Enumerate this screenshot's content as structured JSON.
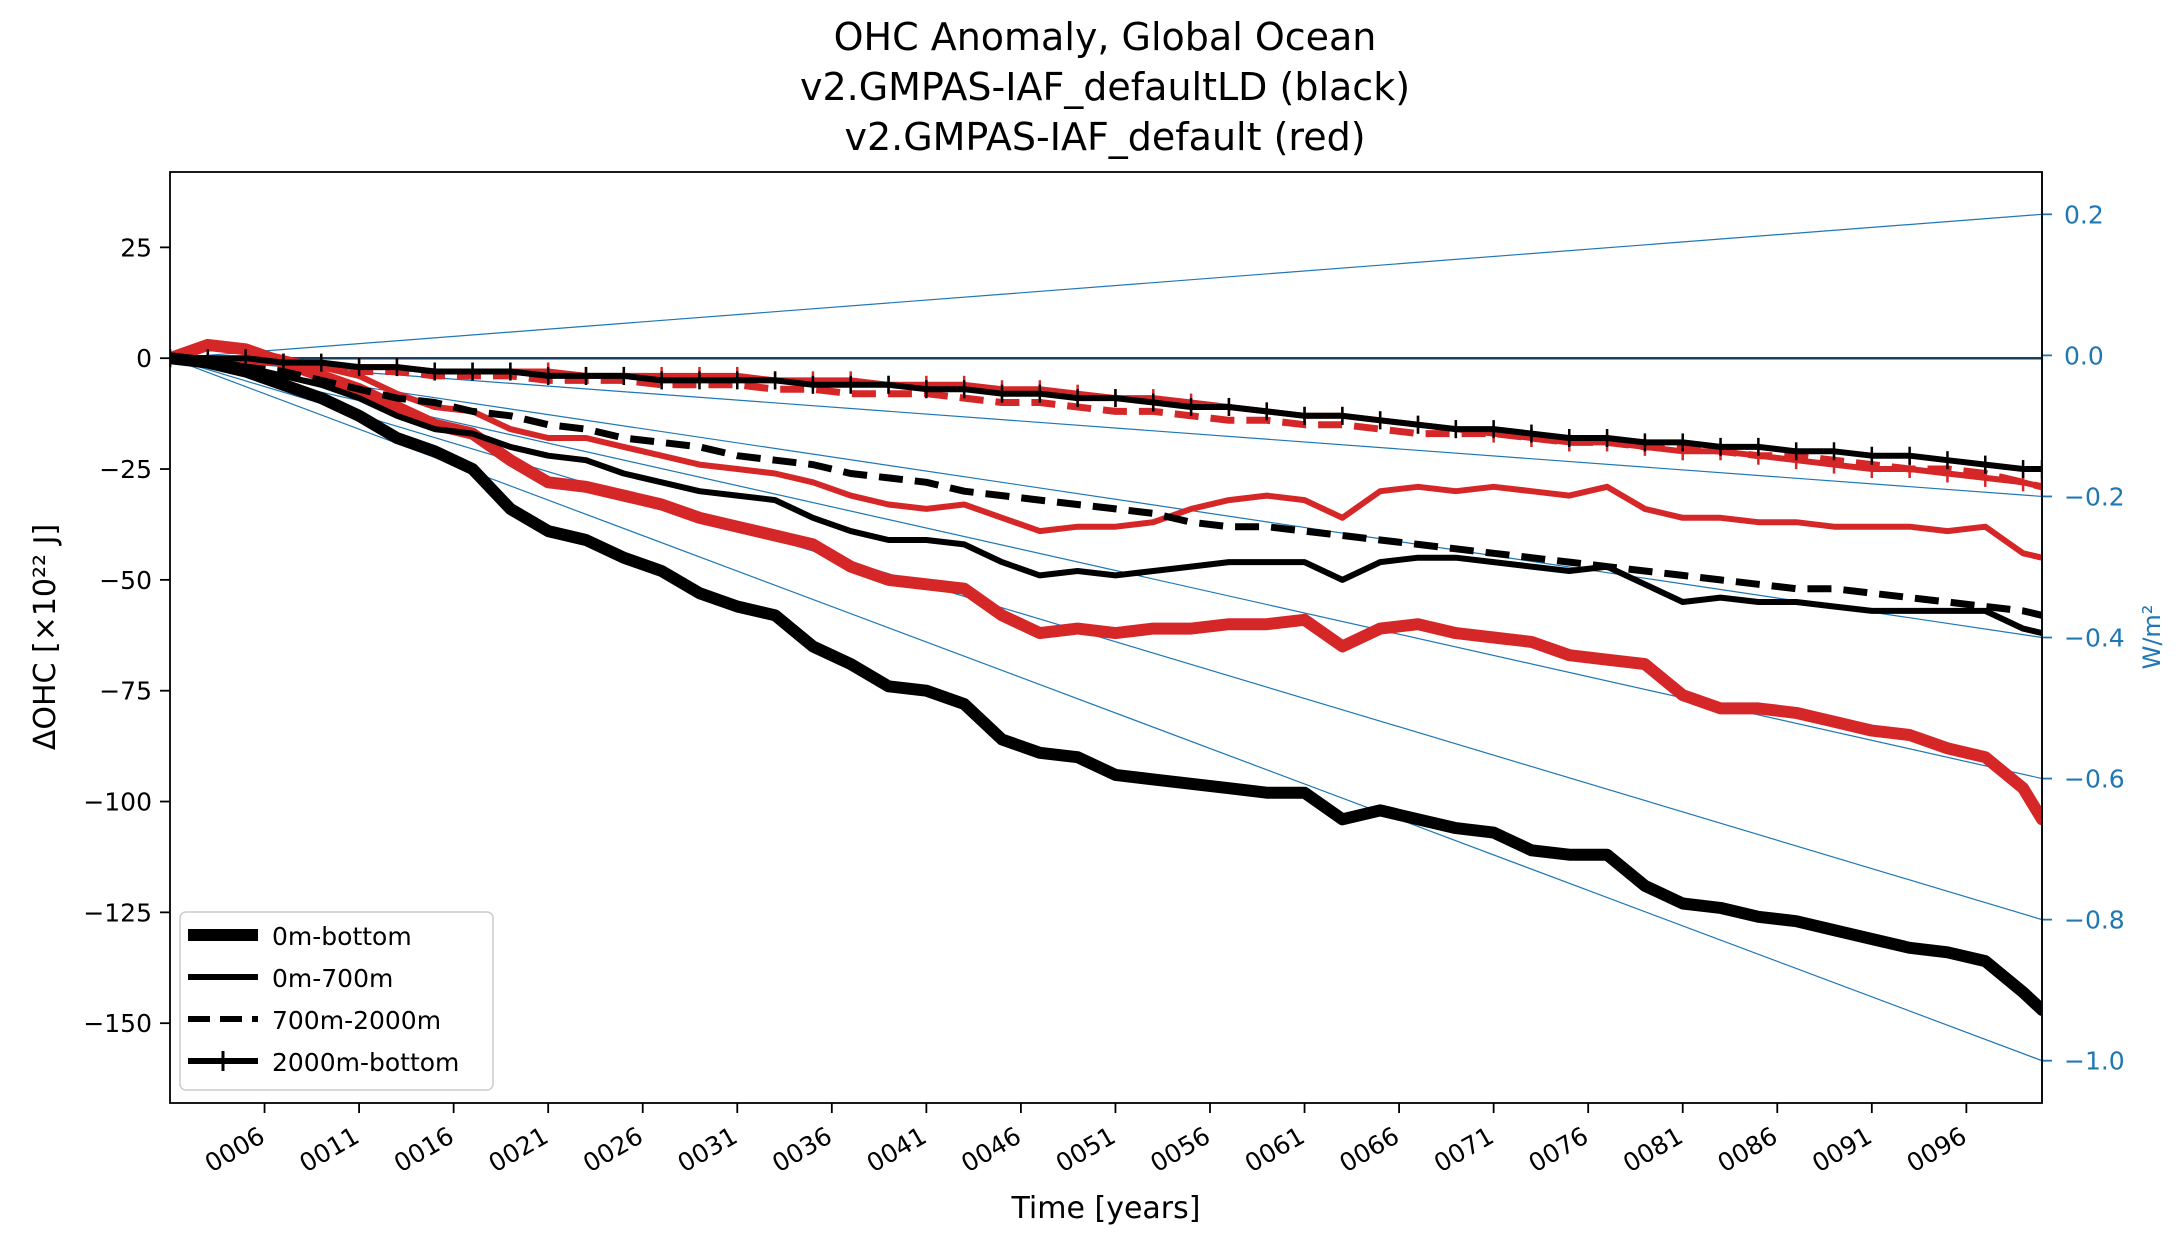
{
  "chart_data": {
    "type": "line",
    "title": [
      "OHC Anomaly, Global Ocean",
      "v2.GMPAS-IAF_defaultLD (black)",
      "v2.GMPAS-IAF_default (red)"
    ],
    "xlabel": "Time [years]",
    "ylabel": "ΔOHC [×10²² J]",
    "y2label": "W/m²",
    "xlim": [
      1,
      100
    ],
    "ylim": [
      -168,
      42
    ],
    "y2lim": [
      -1.06,
      0.26
    ],
    "x_ticks": [
      6,
      11,
      16,
      21,
      26,
      31,
      36,
      41,
      46,
      51,
      56,
      61,
      66,
      71,
      76,
      81,
      86,
      91,
      96
    ],
    "x_tick_labels": [
      "0006",
      "0011",
      "0016",
      "0021",
      "0026",
      "0031",
      "0036",
      "0041",
      "0046",
      "0051",
      "0056",
      "0061",
      "0066",
      "0071",
      "0076",
      "0081",
      "0086",
      "0091",
      "0096"
    ],
    "y_ticks": [
      25,
      0,
      -25,
      -50,
      -75,
      -100,
      -125,
      -150
    ],
    "y_tick_labels": [
      "25",
      "0",
      "−25",
      "−50",
      "−75",
      "−100",
      "−125",
      "−150"
    ],
    "y2_ticks": [
      0.2,
      0.0,
      -0.2,
      -0.4,
      -0.6,
      -0.8,
      -1.0
    ],
    "y2_tick_labels": [
      "0.2",
      "0.0",
      "−0.2",
      "−0.4",
      "−0.6",
      "−0.8",
      "−1.0"
    ],
    "reference_lines_wm2": [
      0.2,
      -0.2,
      -0.4,
      -0.6,
      -0.8,
      -1.0
    ],
    "legend": {
      "position": "lower-left",
      "entries": [
        {
          "label": "0m-bottom",
          "style": "thick-solid"
        },
        {
          "label": "0m-700m",
          "style": "solid"
        },
        {
          "label": "700m-2000m",
          "style": "dashed"
        },
        {
          "label": "2000m-bottom",
          "style": "plus-marker"
        }
      ]
    },
    "colors": {
      "black": "#000000",
      "red": "#d62728",
      "axis2": "#1f77b4",
      "zero_line": "#1f3f5f"
    },
    "x": [
      1,
      3,
      5,
      7,
      9,
      11,
      13,
      15,
      17,
      19,
      21,
      23,
      25,
      27,
      29,
      31,
      33,
      35,
      37,
      39,
      41,
      43,
      45,
      47,
      49,
      51,
      53,
      55,
      57,
      59,
      61,
      63,
      65,
      67,
      69,
      71,
      73,
      75,
      77,
      79,
      81,
      83,
      85,
      87,
      89,
      91,
      93,
      95,
      97,
      99,
      100
    ],
    "series": [
      {
        "run": "v2.GMPAS-IAF_defaultLD",
        "depth": "0m-bottom",
        "color": "black",
        "style": "thick-solid",
        "values": [
          0,
          -1,
          -3,
          -6,
          -9,
          -13,
          -18,
          -21,
          -25,
          -34,
          -39,
          -41,
          -45,
          -48,
          -53,
          -56,
          -58,
          -65,
          -69,
          -74,
          -75,
          -78,
          -86,
          -89,
          -90,
          -94,
          -95,
          -96,
          -97,
          -98,
          -98,
          -104,
          -102,
          -104,
          -106,
          -107,
          -111,
          -112,
          -112,
          -119,
          -123,
          -124,
          -126,
          -127,
          -129,
          -131,
          -133,
          -134,
          -136,
          -143,
          -147
        ]
      },
      {
        "run": "v2.GMPAS-IAF_defaultLD",
        "depth": "0m-700m",
        "color": "black",
        "style": "solid",
        "values": [
          0,
          0,
          -2,
          -4,
          -6,
          -9,
          -13,
          -16,
          -17,
          -20,
          -22,
          -23,
          -26,
          -28,
          -30,
          -31,
          -32,
          -36,
          -39,
          -41,
          -41,
          -42,
          -46,
          -49,
          -48,
          -49,
          -48,
          -47,
          -46,
          -46,
          -46,
          -50,
          -46,
          -45,
          -45,
          -46,
          -47,
          -48,
          -47,
          -51,
          -55,
          -54,
          -55,
          -55,
          -56,
          -57,
          -57,
          -57,
          -57,
          -61,
          -62
        ]
      },
      {
        "run": "v2.GMPAS-IAF_defaultLD",
        "depth": "700m-2000m",
        "color": "black",
        "style": "dashed",
        "values": [
          0,
          -1,
          -2,
          -3,
          -5,
          -7,
          -9,
          -10,
          -12,
          -13,
          -15,
          -16,
          -18,
          -19,
          -20,
          -22,
          -23,
          -24,
          -26,
          -27,
          -28,
          -30,
          -31,
          -32,
          -33,
          -34,
          -35,
          -37,
          -38,
          -38,
          -39,
          -40,
          -41,
          -42,
          -43,
          -44,
          -45,
          -46,
          -47,
          -48,
          -49,
          -50,
          -51,
          -52,
          -52,
          -53,
          -54,
          -55,
          -56,
          -57,
          -58
        ]
      },
      {
        "run": "v2.GMPAS-IAF_defaultLD",
        "depth": "2000m-bottom",
        "color": "black",
        "style": "plus-marker",
        "values": [
          0,
          0,
          0,
          -1,
          -1,
          -2,
          -2,
          -3,
          -3,
          -3,
          -4,
          -4,
          -4,
          -5,
          -5,
          -5,
          -5,
          -6,
          -6,
          -6,
          -7,
          -7,
          -8,
          -8,
          -9,
          -9,
          -10,
          -11,
          -11,
          -12,
          -13,
          -13,
          -14,
          -15,
          -16,
          -16,
          -17,
          -18,
          -18,
          -19,
          -19,
          -20,
          -20,
          -21,
          -21,
          -22,
          -22,
          -23,
          -24,
          -25,
          -25
        ]
      },
      {
        "run": "v2.GMPAS-IAF_default",
        "depth": "0m-bottom",
        "color": "red",
        "style": "thick-solid",
        "values": [
          0,
          3,
          2,
          -1,
          -4,
          -7,
          -11,
          -15,
          -17,
          -23,
          -28,
          -29,
          -31,
          -33,
          -36,
          -38,
          -40,
          -42,
          -47,
          -50,
          -51,
          -52,
          -58,
          -62,
          -61,
          -62,
          -61,
          -61,
          -60,
          -60,
          -59,
          -65,
          -61,
          -60,
          -62,
          -63,
          -64,
          -67,
          -68,
          -69,
          -76,
          -79,
          -79,
          -80,
          -82,
          -84,
          -85,
          -88,
          -90,
          -97,
          -104
        ]
      },
      {
        "run": "v2.GMPAS-IAF_default",
        "depth": "0m-700m",
        "color": "red",
        "style": "solid",
        "values": [
          0,
          3,
          2,
          0,
          -2,
          -4,
          -8,
          -11,
          -12,
          -16,
          -18,
          -18,
          -20,
          -22,
          -24,
          -25,
          -26,
          -28,
          -31,
          -33,
          -34,
          -33,
          -36,
          -39,
          -38,
          -38,
          -37,
          -34,
          -32,
          -31,
          -32,
          -36,
          -30,
          -29,
          -30,
          -29,
          -30,
          -31,
          -29,
          -34,
          -36,
          -36,
          -37,
          -37,
          -38,
          -38,
          -38,
          -39,
          -38,
          -44,
          -45
        ]
      },
      {
        "run": "v2.GMPAS-IAF_default",
        "depth": "700m-2000m",
        "color": "red",
        "style": "dashed",
        "values": [
          0,
          -1,
          -1,
          -2,
          -2,
          -3,
          -3,
          -4,
          -4,
          -4,
          -5,
          -5,
          -5,
          -6,
          -6,
          -6,
          -7,
          -7,
          -8,
          -8,
          -8,
          -9,
          -10,
          -10,
          -11,
          -12,
          -12,
          -13,
          -14,
          -14,
          -15,
          -15,
          -16,
          -17,
          -17,
          -17,
          -18,
          -19,
          -19,
          -20,
          -20,
          -21,
          -22,
          -22,
          -23,
          -24,
          -25,
          -25,
          -26,
          -28,
          -29
        ]
      },
      {
        "run": "v2.GMPAS-IAF_default",
        "depth": "2000m-bottom",
        "color": "red",
        "style": "plus-marker",
        "values": [
          0,
          0,
          -1,
          -1,
          -2,
          -2,
          -2,
          -3,
          -3,
          -3,
          -3,
          -4,
          -4,
          -4,
          -4,
          -4,
          -5,
          -5,
          -5,
          -6,
          -6,
          -6,
          -7,
          -7,
          -8,
          -9,
          -9,
          -10,
          -11,
          -12,
          -13,
          -13,
          -14,
          -15,
          -16,
          -17,
          -18,
          -19,
          -19,
          -20,
          -21,
          -21,
          -22,
          -23,
          -24,
          -25,
          -25,
          -26,
          -27,
          -28,
          -29
        ]
      }
    ]
  }
}
